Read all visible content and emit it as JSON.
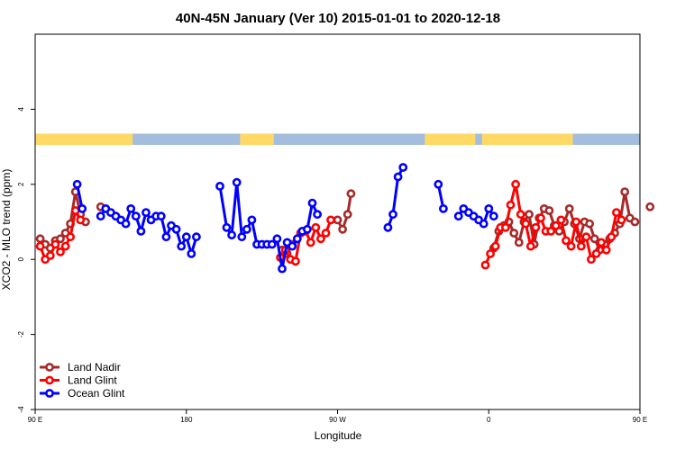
{
  "chart_data": {
    "type": "line",
    "title": "40N-45N January (Ver 10)   2015-01-01 to 2020-12-18",
    "xlabel": "Longitude",
    "ylabel": "XCO2 - MLO trend (ppm)",
    "xlim": [
      90,
      450
    ],
    "ylim": [
      -4,
      6
    ],
    "x_ticks": [
      {
        "value": 90,
        "label": "90 E"
      },
      {
        "value": 180,
        "label": "180"
      },
      {
        "value": 270,
        "label": "90 W"
      },
      {
        "value": 360,
        "label": "0"
      },
      {
        "value": 450,
        "label": "90 E"
      },
      {
        "value": 540,
        "label": "180"
      }
    ],
    "y_ticks": [
      {
        "value": -4,
        "label": "-4"
      },
      {
        "value": -2,
        "label": "-2"
      },
      {
        "value": 0,
        "label": "0"
      },
      {
        "value": 2,
        "label": "2"
      },
      {
        "value": 4,
        "label": "4"
      }
    ],
    "grid": false,
    "legend_position": "bottom-left",
    "land_mask": {
      "land_color": "#FFD966",
      "ocean_color": "#A5BDDC",
      "y_range": [
        3.05,
        3.35
      ],
      "land_segments": [
        [
          90,
          148
        ],
        [
          212,
          232
        ],
        [
          322,
          352
        ],
        [
          356,
          410
        ],
        [
          452,
          540
        ]
      ]
    },
    "series": [
      {
        "name": "Land Nadir",
        "color": "#A52A2A",
        "points": [
          [
            93,
            0.55
          ],
          [
            96,
            0.4
          ],
          [
            99,
            0.3
          ],
          [
            102,
            0.5
          ],
          [
            105,
            0.55
          ],
          [
            108,
            0.7
          ],
          [
            111,
            0.95
          ],
          [
            114,
            1.8
          ],
          [
            117,
            1.2
          ],
          [
            120,
            1.0
          ],
          null,
          [
            129,
            1.4
          ],
          null,
          [
            237,
            0.25
          ],
          [
            240,
            0.15
          ],
          [
            243,
            0.4
          ],
          null,
          [
            270,
            1.05
          ],
          [
            273,
            0.8
          ],
          [
            276,
            1.2
          ],
          [
            278,
            1.75
          ],
          null,
          [
            363,
            0.3
          ],
          [
            366,
            0.75
          ],
          [
            369,
            0.9
          ],
          [
            372,
            1.0
          ],
          [
            375,
            0.7
          ],
          [
            378,
            0.45
          ],
          [
            381,
            1.0
          ],
          [
            384,
            1.2
          ],
          [
            387,
            0.4
          ],
          [
            390,
            1.1
          ],
          [
            393,
            1.35
          ],
          [
            396,
            1.3
          ],
          [
            399,
            0.9
          ],
          [
            402,
            0.75
          ],
          [
            405,
            1.0
          ],
          [
            408,
            1.35
          ],
          [
            411,
            0.95
          ],
          [
            414,
            0.55
          ],
          [
            417,
            1.0
          ],
          [
            420,
            0.95
          ],
          [
            423,
            0.55
          ],
          [
            426,
            0.25
          ],
          [
            429,
            0.4
          ],
          [
            432,
            0.55
          ],
          [
            435,
            0.7
          ],
          [
            438,
            0.95
          ],
          [
            441,
            1.8
          ],
          [
            444,
            1.1
          ],
          [
            447,
            1.0
          ],
          null,
          [
            456,
            1.4
          ]
        ]
      },
      {
        "name": "Land Glint",
        "color": "#FF0000",
        "points": [
          [
            93,
            0.35
          ],
          [
            96,
            0.0
          ],
          [
            99,
            0.1
          ],
          [
            102,
            0.4
          ],
          [
            105,
            0.2
          ],
          [
            108,
            0.35
          ],
          [
            111,
            0.6
          ],
          [
            114,
            1.3
          ],
          [
            117,
            1.05
          ],
          null,
          [
            236,
            0.05
          ],
          [
            239,
            0.25
          ],
          [
            242,
            0.0
          ],
          [
            245,
            -0.05
          ],
          [
            248,
            0.7
          ],
          [
            251,
            0.75
          ],
          [
            254,
            0.45
          ],
          [
            257,
            0.85
          ],
          [
            260,
            0.55
          ],
          [
            263,
            0.7
          ],
          [
            266,
            1.05
          ],
          null,
          [
            358,
            -0.15
          ],
          [
            361,
            0.15
          ],
          [
            364,
            0.35
          ],
          [
            367,
            0.85
          ],
          [
            370,
            0.85
          ],
          [
            373,
            1.45
          ],
          [
            376,
            2.0
          ],
          [
            379,
            1.2
          ],
          [
            382,
            0.95
          ],
          [
            385,
            0.35
          ],
          [
            388,
            0.85
          ],
          [
            391,
            1.1
          ],
          [
            394,
            0.75
          ],
          [
            397,
            0.75
          ],
          [
            400,
            0.9
          ],
          [
            403,
            1.05
          ],
          [
            406,
            0.5
          ],
          [
            409,
            0.35
          ],
          [
            412,
            1.0
          ],
          [
            415,
            0.35
          ],
          [
            418,
            0.6
          ],
          [
            421,
            0.0
          ],
          [
            424,
            0.15
          ],
          [
            427,
            0.45
          ],
          [
            430,
            0.25
          ],
          [
            433,
            0.6
          ],
          [
            436,
            1.25
          ],
          [
            439,
            1.05
          ]
        ]
      },
      {
        "name": "Ocean Glint",
        "color": "#0000FF",
        "points": [
          [
            115,
            2.0
          ],
          [
            118,
            1.35
          ],
          null,
          [
            129,
            1.15
          ],
          [
            132,
            1.35
          ],
          [
            135,
            1.25
          ],
          [
            138,
            1.15
          ],
          [
            141,
            1.05
          ],
          [
            144,
            0.95
          ],
          [
            147,
            1.35
          ],
          [
            150,
            1.15
          ],
          [
            153,
            0.75
          ],
          [
            156,
            1.25
          ],
          [
            159,
            1.05
          ],
          [
            162,
            1.15
          ],
          [
            165,
            1.15
          ],
          [
            168,
            0.6
          ],
          [
            171,
            0.9
          ],
          [
            174,
            0.8
          ],
          [
            177,
            0.35
          ],
          [
            180,
            0.6
          ],
          [
            183,
            0.15
          ],
          [
            186,
            0.6
          ],
          null,
          [
            200,
            1.95
          ],
          [
            204,
            0.85
          ],
          [
            207,
            0.65
          ],
          [
            210,
            2.05
          ],
          [
            213,
            0.6
          ],
          [
            216,
            0.8
          ],
          [
            219,
            1.05
          ],
          [
            222,
            0.4
          ],
          [
            225,
            0.4
          ],
          [
            228,
            0.4
          ],
          [
            231,
            0.4
          ],
          [
            234,
            0.55
          ],
          [
            237,
            -0.25
          ],
          [
            240,
            0.45
          ],
          [
            243,
            0.35
          ],
          [
            246,
            0.55
          ],
          [
            249,
            0.75
          ],
          [
            252,
            0.8
          ],
          [
            255,
            1.5
          ],
          [
            258,
            1.2
          ],
          null,
          [
            300,
            0.85
          ],
          [
            303,
            1.2
          ],
          [
            306,
            2.2
          ],
          [
            309,
            2.45
          ],
          null,
          [
            330,
            2.0
          ],
          [
            333,
            1.35
          ],
          null,
          [
            342,
            1.15
          ],
          [
            345,
            1.35
          ],
          [
            348,
            1.25
          ],
          [
            351,
            1.15
          ],
          [
            354,
            1.05
          ],
          [
            357,
            0.95
          ],
          [
            360,
            1.35
          ],
          [
            363,
            1.15
          ]
        ]
      }
    ]
  }
}
